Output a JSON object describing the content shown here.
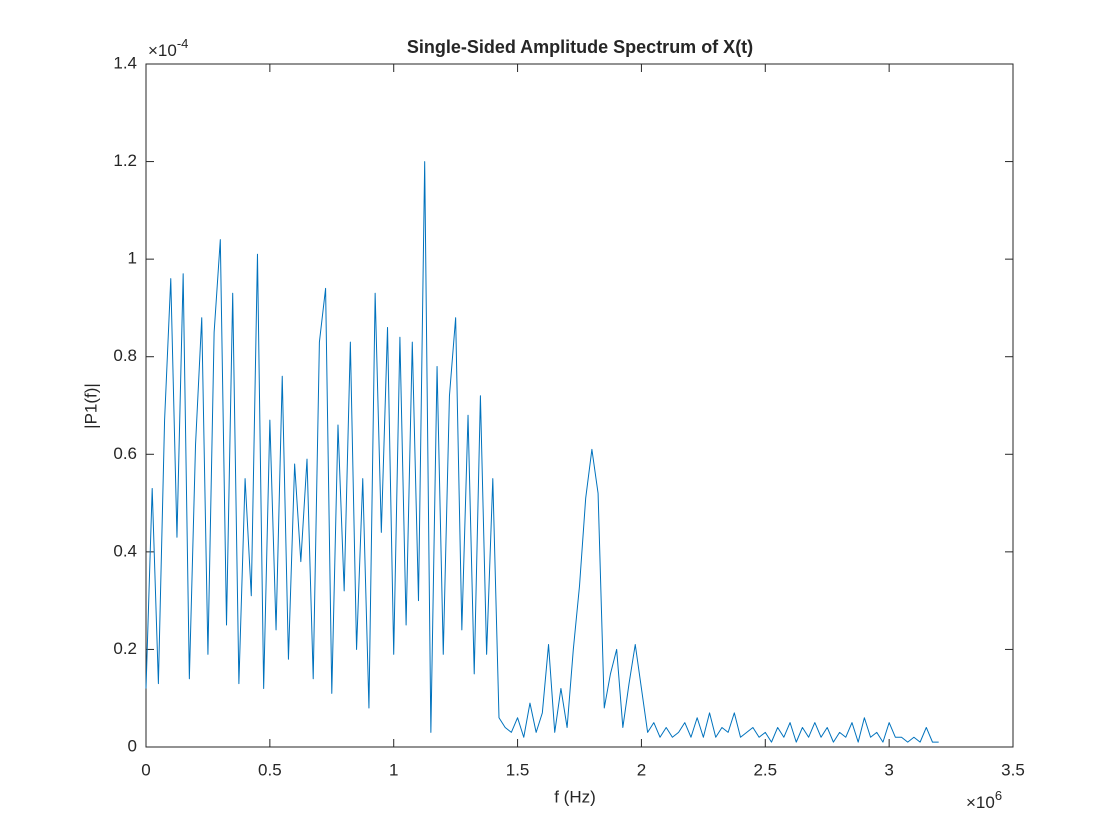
{
  "chart_data": {
    "type": "line",
    "title": "Single-Sided Amplitude Spectrum of X(t)",
    "x_label": "f (Hz)",
    "y_label": "|P1(f)|",
    "x_multiplier": "×10",
    "x_multiplier_exponent": "6",
    "y_multiplier": "×10",
    "y_multiplier_exponent": "-4",
    "color": "#0072bd",
    "xlim": [
      0,
      3.5
    ],
    "xticks": [
      0,
      0.5,
      1,
      1.5,
      2,
      2.5,
      3,
      3.5
    ],
    "ylim": [
      0,
      1.4
    ],
    "yticks": [
      0,
      0.2,
      0.4,
      0.6,
      0.8,
      1,
      1.2,
      1.4
    ],
    "x": [
      0,
      0.025,
      0.05,
      0.075,
      0.1,
      0.125,
      0.15,
      0.175,
      0.2,
      0.225,
      0.25,
      0.275,
      0.3,
      0.325,
      0.35,
      0.375,
      0.4,
      0.425,
      0.45,
      0.475,
      0.5,
      0.525,
      0.55,
      0.575,
      0.6,
      0.625,
      0.65,
      0.675,
      0.7,
      0.725,
      0.75,
      0.775,
      0.8,
      0.825,
      0.85,
      0.875,
      0.9,
      0.925,
      0.95,
      0.975,
      1,
      1.025,
      1.05,
      1.075,
      1.1,
      1.125,
      1.15,
      1.175,
      1.2,
      1.225,
      1.25,
      1.275,
      1.3,
      1.325,
      1.35,
      1.375,
      1.4,
      1.425,
      1.45,
      1.475,
      1.5,
      1.525,
      1.55,
      1.575,
      1.6,
      1.625,
      1.65,
      1.675,
      1.7,
      1.725,
      1.75,
      1.775,
      1.8,
      1.825,
      1.85,
      1.875,
      1.9,
      1.925,
      1.95,
      1.975,
      2,
      2.025,
      2.05,
      2.075,
      2.1,
      2.125,
      2.15,
      2.175,
      2.2,
      2.225,
      2.25,
      2.275,
      2.3,
      2.325,
      2.35,
      2.375,
      2.4,
      2.425,
      2.45,
      2.475,
      2.5,
      2.525,
      2.55,
      2.575,
      2.6,
      2.625,
      2.65,
      2.675,
      2.7,
      2.725,
      2.75,
      2.775,
      2.8,
      2.825,
      2.85,
      2.875,
      2.9,
      2.925,
      2.95,
      2.975,
      3,
      3.025,
      3.05,
      3.075,
      3.1,
      3.125,
      3.15,
      3.175,
      3.2
    ],
    "values": [
      0.12,
      0.53,
      0.13,
      0.67,
      0.96,
      0.43,
      0.97,
      0.14,
      0.62,
      0.88,
      0.19,
      0.85,
      1.04,
      0.25,
      0.93,
      0.13,
      0.55,
      0.31,
      1.01,
      0.12,
      0.67,
      0.24,
      0.76,
      0.18,
      0.58,
      0.38,
      0.59,
      0.14,
      0.83,
      0.94,
      0.11,
      0.66,
      0.32,
      0.83,
      0.2,
      0.55,
      0.08,
      0.93,
      0.44,
      0.86,
      0.19,
      0.84,
      0.25,
      0.83,
      0.3,
      1.2,
      0.03,
      0.78,
      0.19,
      0.72,
      0.88,
      0.24,
      0.68,
      0.15,
      0.72,
      0.19,
      0.55,
      0.06,
      0.04,
      0.03,
      0.06,
      0.02,
      0.09,
      0.03,
      0.07,
      0.21,
      0.03,
      0.12,
      0.04,
      0.2,
      0.33,
      0.51,
      0.61,
      0.52,
      0.08,
      0.15,
      0.2,
      0.04,
      0.13,
      0.21,
      0.12,
      0.03,
      0.05,
      0.02,
      0.04,
      0.02,
      0.03,
      0.05,
      0.02,
      0.06,
      0.02,
      0.07,
      0.02,
      0.04,
      0.03,
      0.07,
      0.02,
      0.03,
      0.04,
      0.02,
      0.03,
      0.01,
      0.04,
      0.02,
      0.05,
      0.01,
      0.04,
      0.02,
      0.05,
      0.02,
      0.04,
      0.01,
      0.03,
      0.02,
      0.05,
      0.01,
      0.06,
      0.02,
      0.03,
      0.01,
      0.05,
      0.02,
      0.02,
      0.01,
      0.02,
      0.01,
      0.04,
      0.01,
      0.01
    ]
  }
}
